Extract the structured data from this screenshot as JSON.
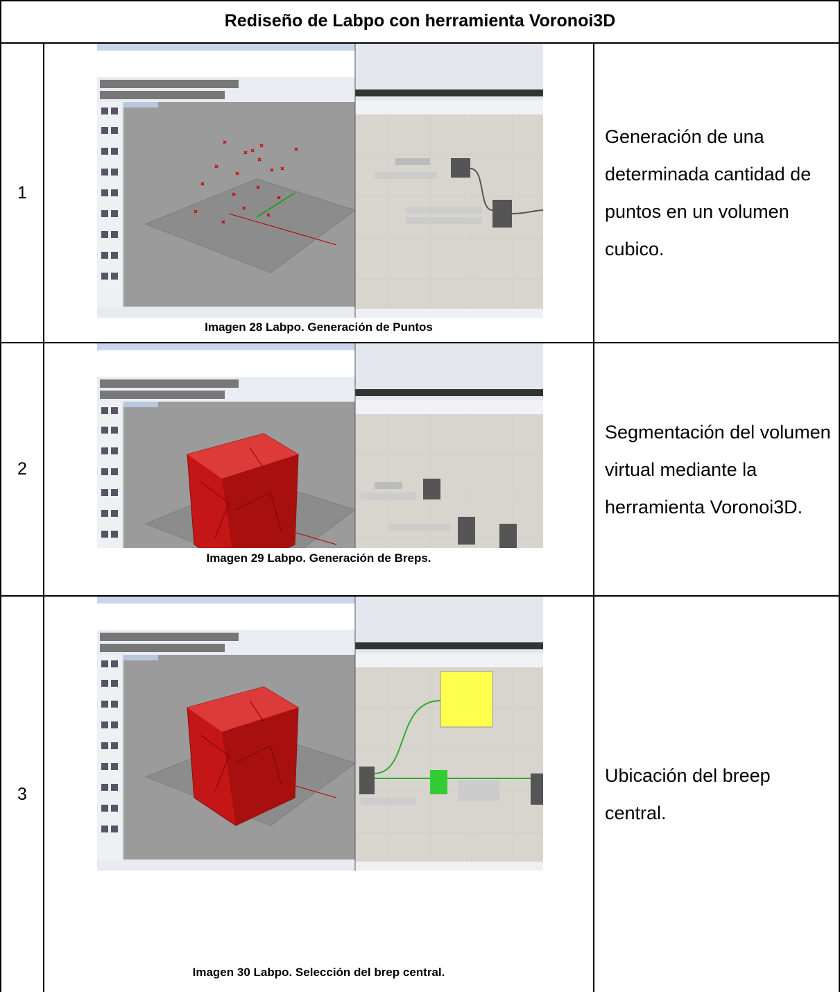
{
  "header": {
    "title": "Rediseño de Labpo con herramienta Voronoi3D"
  },
  "rows": [
    {
      "number": "1",
      "caption": "Imagen 28 Labpo. Generación de Puntos",
      "description": "Generación de una determinada cantidad de puntos en un volumen cubico."
    },
    {
      "number": "2",
      "caption": "Imagen 29 Labpo. Generación de Breps.",
      "description": "Segmentación del volumen virtual mediante la herramienta Voronoi3D."
    },
    {
      "number": "3",
      "caption": "Imagen 30 Labpo. Selección del brep central.",
      "description": "Ubicación del breep central."
    }
  ]
}
